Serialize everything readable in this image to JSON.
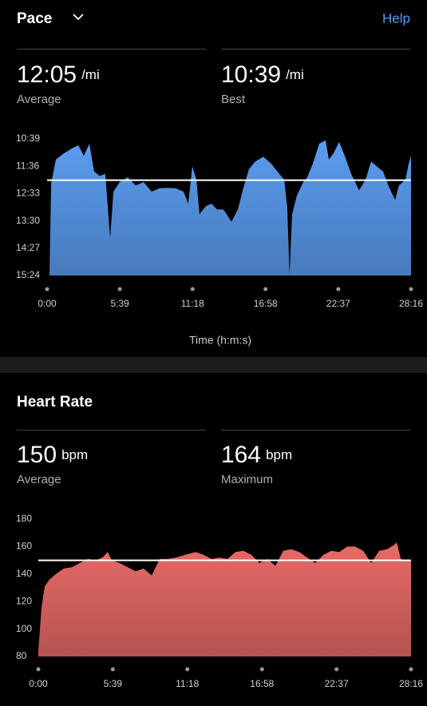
{
  "header": {
    "title": "Pace",
    "help": "Help"
  },
  "pace_stats": [
    {
      "value": "12:05",
      "unit": "/mi",
      "label": "Average"
    },
    {
      "value": "10:39",
      "unit": "/mi",
      "label": "Best"
    }
  ],
  "heart_title": "Heart Rate",
  "heart_stats": [
    {
      "value": "150",
      "unit": "bpm",
      "label": "Average"
    },
    {
      "value": "164",
      "unit": "bpm",
      "label": "Maximum"
    }
  ],
  "chart_data": [
    {
      "type": "area",
      "color": "#5b9cf0",
      "y_inverted": true,
      "ylim": [
        639,
        924
      ],
      "yticks": [
        {
          "value": 639,
          "label": "10:39"
        },
        {
          "value": 696,
          "label": "11:36"
        },
        {
          "value": 753,
          "label": "12:33"
        },
        {
          "value": 810,
          "label": "13:30"
        },
        {
          "value": 867,
          "label": "14:27"
        },
        {
          "value": 924,
          "label": "15:24"
        }
      ],
      "xlim": [
        0,
        1696
      ],
      "xticks": [
        {
          "value": 0,
          "label": "0:00"
        },
        {
          "value": 339,
          "label": "5:39"
        },
        {
          "value": 678,
          "label": "11:18"
        },
        {
          "value": 1018,
          "label": "16:58"
        },
        {
          "value": 1357,
          "label": "22:37"
        },
        {
          "value": 1696,
          "label": "28:16"
        }
      ],
      "x_label": "Time (h:m:s)",
      "average_line": 725,
      "x": [
        11,
        19,
        41,
        78,
        115,
        145,
        171,
        197,
        219,
        245,
        271,
        294,
        309,
        338,
        376,
        413,
        450,
        487,
        524,
        562,
        599,
        636,
        658,
        677,
        696,
        710,
        740,
        766,
        792,
        822,
        859,
        889,
        915,
        941,
        970,
        1008,
        1045,
        1082,
        1105,
        1119,
        1130,
        1142,
        1164,
        1194,
        1212,
        1238,
        1268,
        1298,
        1313,
        1335,
        1361,
        1387,
        1417,
        1454,
        1484,
        1510,
        1536,
        1566,
        1595,
        1622,
        1640,
        1670,
        1685,
        1696
      ],
      "values": [
        924,
        732,
        682,
        669,
        659,
        652,
        674,
        649,
        707,
        716,
        712,
        846,
        749,
        729,
        719,
        736,
        729,
        749,
        742,
        741,
        742,
        749,
        774,
        696,
        724,
        796,
        779,
        774,
        786,
        786,
        812,
        786,
        741,
        702,
        686,
        676,
        691,
        712,
        724,
        782,
        924,
        796,
        757,
        729,
        719,
        691,
        649,
        642,
        682,
        669,
        645,
        674,
        712,
        746,
        724,
        686,
        696,
        707,
        741,
        766,
        736,
        724,
        691,
        674
      ]
    },
    {
      "type": "area",
      "color": "#e86a66",
      "ylim": [
        80,
        180
      ],
      "yticks": [
        80,
        100,
        120,
        140,
        160,
        180
      ],
      "xlim": [
        0,
        1696
      ],
      "xticks": [
        {
          "value": 0,
          "label": "0:00"
        },
        {
          "value": 339,
          "label": "5:39"
        },
        {
          "value": 678,
          "label": "11:18"
        },
        {
          "value": 1018,
          "label": "16:58"
        },
        {
          "value": 1357,
          "label": "22:37"
        },
        {
          "value": 1696,
          "label": "28:16"
        }
      ],
      "average_line": 150,
      "x": [
        0,
        15,
        29,
        51,
        80,
        116,
        153,
        189,
        225,
        262,
        291,
        316,
        334,
        370,
        407,
        443,
        479,
        516,
        552,
        588,
        625,
        668,
        716,
        752,
        788,
        824,
        861,
        897,
        933,
        970,
        1006,
        1042,
        1079,
        1115,
        1151,
        1188,
        1224,
        1260,
        1297,
        1333,
        1369,
        1406,
        1442,
        1478,
        1515,
        1551,
        1587,
        1616,
        1631,
        1649,
        1678,
        1696
      ],
      "values": [
        84,
        116,
        131,
        136,
        140,
        144,
        145,
        148,
        151,
        150,
        152,
        156,
        150,
        148,
        145,
        142,
        144,
        139,
        151,
        151,
        152,
        154,
        156,
        154,
        151,
        152,
        151,
        156,
        157,
        154,
        148,
        151,
        146,
        157,
        158,
        156,
        152,
        148,
        154,
        157,
        156,
        160,
        160,
        157,
        148,
        157,
        158,
        161,
        163,
        151,
        150,
        150
      ]
    }
  ]
}
